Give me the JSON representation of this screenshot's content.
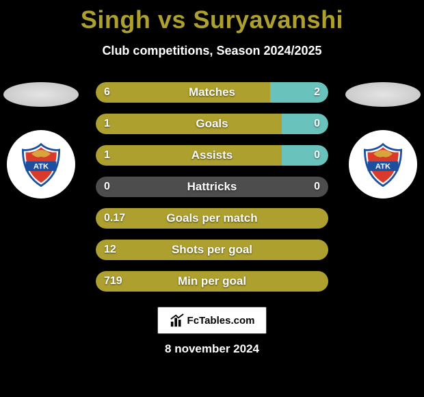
{
  "title": "Singh vs Suryavanshi",
  "subtitle": "Club competitions, Season 2024/2025",
  "date": "8 november 2024",
  "brand": "FcTables.com",
  "colors": {
    "title": "#ada02f",
    "left_bar_strong": "#ada02f",
    "left_bar_muted": "#4d4d4d",
    "right_bar_accent": "#69c3bc",
    "background": "#000000",
    "bar_muted": "#4d4d4d"
  },
  "players": {
    "left": {
      "name": "Singh",
      "club_logo": "atk"
    },
    "right": {
      "name": "Suryavanshi",
      "club_logo": "atk"
    }
  },
  "stats": [
    {
      "label": "Matches",
      "left_value": "6",
      "right_value": "2",
      "left_pct": 75,
      "left_color": "#ada02f",
      "right_color": "#69c3bc"
    },
    {
      "label": "Goals",
      "left_value": "1",
      "right_value": "0",
      "left_pct": 80,
      "left_color": "#ada02f",
      "right_color": "#69c3bc"
    },
    {
      "label": "Assists",
      "left_value": "1",
      "right_value": "0",
      "left_pct": 80,
      "left_color": "#ada02f",
      "right_color": "#69c3bc"
    },
    {
      "label": "Hattricks",
      "left_value": "0",
      "right_value": "0",
      "left_pct": 50,
      "left_color": "#4d4d4d",
      "right_color": "#4d4d4d"
    },
    {
      "label": "Goals per match",
      "left_value": "0.17",
      "right_value": "",
      "left_pct": 100,
      "left_color": "#ada02f",
      "right_color": "#ada02f"
    },
    {
      "label": "Shots per goal",
      "left_value": "12",
      "right_value": "",
      "left_pct": 100,
      "left_color": "#ada02f",
      "right_color": "#ada02f"
    },
    {
      "label": "Min per goal",
      "left_value": "719",
      "right_value": "",
      "left_pct": 100,
      "left_color": "#ada02f",
      "right_color": "#ada02f"
    }
  ]
}
